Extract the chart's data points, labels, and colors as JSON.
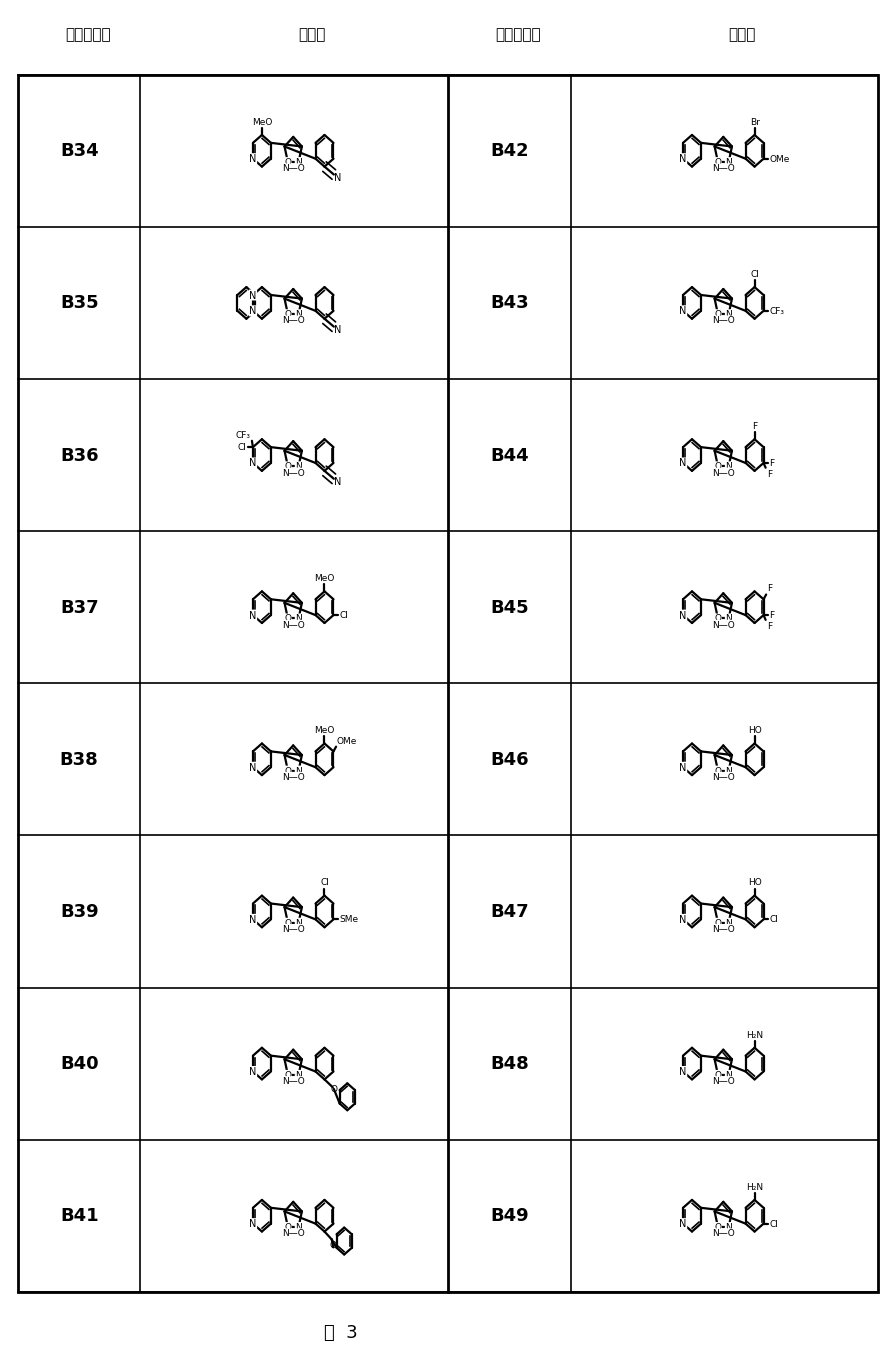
{
  "figure_label": "图  3",
  "background_color": "#ffffff",
  "figsize": [
    8.96,
    13.675
  ],
  "dpi": 100,
  "col1_header_compound": "化合物编号",
  "col1_header_structure": "结构式",
  "col2_header_compound": "化合物编号",
  "col2_header_structure": "结构式",
  "compounds_left": [
    "B34",
    "B35",
    "B36",
    "B37",
    "B38",
    "B39",
    "B40",
    "B41"
  ],
  "compounds_right": [
    "B42",
    "B43",
    "B44",
    "B45",
    "B46",
    "B47",
    "B48",
    "B49"
  ],
  "n_rows": 8
}
